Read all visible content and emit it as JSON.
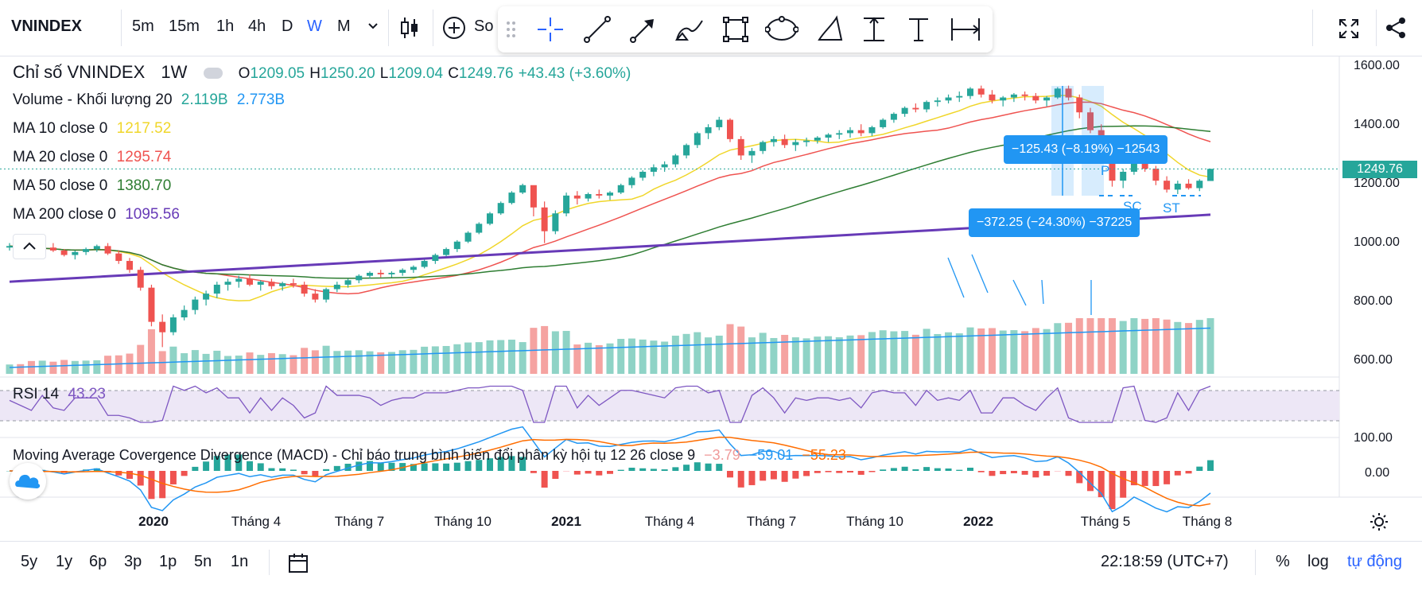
{
  "header": {
    "symbol": "VNINDEX",
    "timeframes": [
      "5m",
      "15m",
      "1h",
      "4h",
      "D",
      "W",
      "M"
    ],
    "active_timeframe": "W",
    "compare_label": "So"
  },
  "legend": {
    "title": "Chỉ số VNINDEX",
    "interval": "1W",
    "open_label": "O",
    "open": "1209.05",
    "high_label": "H",
    "high": "1250.20",
    "low_label": "L",
    "low": "1209.04",
    "close_label": "C",
    "close": "1249.76",
    "change": "+43.43 (+3.60%)",
    "volume_label": "Volume - Khối lượng 20",
    "volume_val1": "2.119B",
    "volume_val2": "2.773B",
    "ma10_label": "MA 10 close 0",
    "ma10_val": "1217.52",
    "ma20_label": "MA 20 close 0",
    "ma20_val": "1295.74",
    "ma50_label": "MA 50 close 0",
    "ma50_val": "1380.70",
    "ma200_label": "MA 200 close 0",
    "ma200_val": "1095.56",
    "rsi_label": "RSI 14",
    "rsi_val": "43.23",
    "macd_label": "Moving Average Covergence Divergence (MACD) - Chỉ báo trung bình biến đổi phân kỳ hội tụ 12 26 close 9",
    "macd_val1": "−3.79",
    "macd_val2": "−59.01",
    "macd_val3": "−55.23"
  },
  "colors": {
    "up": "#26a69a",
    "down": "#ef5350",
    "ma10": "#f0d62a",
    "ma20": "#ef5350",
    "ma50": "#2e7d32",
    "ma200": "#673ab7",
    "blue": "#2196f3",
    "rsi": "#7e57c2",
    "macd_orange": "#ff6d00"
  },
  "price_axis": {
    "ticks": [
      "1600.00",
      "1400.00",
      "1200.00",
      "1000.00",
      "800.00",
      "600.00"
    ],
    "current": "1249.76"
  },
  "rsi_axis": {
    "ticks": [
      "100.00"
    ]
  },
  "macd_axis": {
    "ticks": [
      "0.00"
    ]
  },
  "measurements": [
    {
      "text": "−125.43 (−8.19%) −12543"
    },
    {
      "text": "−372.25 (−24.30%) −37225"
    }
  ],
  "pattern_labels": [
    "P",
    "SC",
    "ST"
  ],
  "x_axis": [
    "2020",
    "Tháng 4",
    "Tháng 7",
    "Tháng 10",
    "2021",
    "Tháng 4",
    "Tháng 7",
    "Tháng 10",
    "2022",
    "Tháng 5",
    "Tháng 8"
  ],
  "bottom": {
    "ranges": [
      "5y",
      "1y",
      "6p",
      "3p",
      "1p",
      "5n",
      "1n"
    ],
    "time": "22:18:59 (UTC+7)",
    "percent": "%",
    "log": "log",
    "auto": "tự động"
  },
  "chart_data": {
    "type": "candlestick",
    "interval": "weekly",
    "y_range": [
      560,
      1620
    ],
    "weeks": [
      [
        985,
        1000,
        975,
        990
      ],
      [
        990,
        1005,
        980,
        985
      ],
      [
        985,
        995,
        960,
        970
      ],
      [
        970,
        990,
        960,
        985
      ],
      [
        985,
        1000,
        970,
        975
      ],
      [
        975,
        980,
        955,
        960
      ],
      [
        960,
        975,
        945,
        970
      ],
      [
        970,
        985,
        960,
        980
      ],
      [
        980,
        995,
        970,
        990
      ],
      [
        990,
        1000,
        960,
        965
      ],
      [
        965,
        975,
        930,
        940
      ],
      [
        940,
        950,
        900,
        910
      ],
      [
        910,
        920,
        840,
        850
      ],
      [
        850,
        860,
        720,
        735
      ],
      [
        735,
        760,
        650,
        700
      ],
      [
        700,
        760,
        690,
        750
      ],
      [
        750,
        790,
        740,
        775
      ],
      [
        775,
        820,
        760,
        810
      ],
      [
        810,
        840,
        790,
        830
      ],
      [
        830,
        870,
        815,
        860
      ],
      [
        860,
        880,
        840,
        870
      ],
      [
        870,
        890,
        850,
        880
      ],
      [
        880,
        895,
        855,
        860
      ],
      [
        860,
        875,
        840,
        870
      ],
      [
        870,
        880,
        845,
        855
      ],
      [
        855,
        870,
        840,
        865
      ],
      [
        865,
        880,
        850,
        860
      ],
      [
        860,
        870,
        820,
        830
      ],
      [
        830,
        845,
        800,
        810
      ],
      [
        810,
        850,
        800,
        845
      ],
      [
        845,
        870,
        835,
        860
      ],
      [
        860,
        880,
        850,
        875
      ],
      [
        875,
        895,
        865,
        890
      ],
      [
        890,
        905,
        880,
        900
      ],
      [
        900,
        910,
        885,
        895
      ],
      [
        895,
        905,
        885,
        900
      ],
      [
        900,
        915,
        890,
        910
      ],
      [
        910,
        925,
        900,
        920
      ],
      [
        920,
        945,
        915,
        940
      ],
      [
        940,
        965,
        930,
        960
      ],
      [
        960,
        985,
        955,
        980
      ],
      [
        980,
        1010,
        970,
        1005
      ],
      [
        1005,
        1040,
        1000,
        1035
      ],
      [
        1035,
        1070,
        1030,
        1065
      ],
      [
        1065,
        1105,
        1060,
        1100
      ],
      [
        1100,
        1140,
        1095,
        1135
      ],
      [
        1135,
        1175,
        1130,
        1170
      ],
      [
        1170,
        1200,
        1165,
        1195
      ],
      [
        1195,
        1190,
        1090,
        1120
      ],
      [
        1120,
        1140,
        1000,
        1040
      ],
      [
        1040,
        1110,
        1030,
        1100
      ],
      [
        1100,
        1170,
        1090,
        1160
      ],
      [
        1160,
        1175,
        1130,
        1150
      ],
      [
        1150,
        1170,
        1140,
        1165
      ],
      [
        1165,
        1180,
        1150,
        1160
      ],
      [
        1160,
        1175,
        1145,
        1170
      ],
      [
        1170,
        1200,
        1165,
        1195
      ],
      [
        1195,
        1225,
        1185,
        1220
      ],
      [
        1220,
        1245,
        1210,
        1240
      ],
      [
        1240,
        1265,
        1225,
        1255
      ],
      [
        1255,
        1275,
        1240,
        1265
      ],
      [
        1265,
        1300,
        1255,
        1295
      ],
      [
        1295,
        1335,
        1285,
        1330
      ],
      [
        1330,
        1375,
        1320,
        1370
      ],
      [
        1370,
        1400,
        1350,
        1390
      ],
      [
        1390,
        1425,
        1380,
        1415
      ],
      [
        1415,
        1420,
        1340,
        1350
      ],
      [
        1350,
        1360,
        1280,
        1295
      ],
      [
        1295,
        1320,
        1270,
        1310
      ],
      [
        1310,
        1345,
        1300,
        1340
      ],
      [
        1340,
        1360,
        1325,
        1350
      ],
      [
        1350,
        1365,
        1320,
        1330
      ],
      [
        1330,
        1350,
        1310,
        1340
      ],
      [
        1340,
        1355,
        1325,
        1345
      ],
      [
        1345,
        1360,
        1335,
        1355
      ],
      [
        1355,
        1370,
        1340,
        1365
      ],
      [
        1365,
        1380,
        1350,
        1370
      ],
      [
        1370,
        1390,
        1355,
        1380
      ],
      [
        1380,
        1400,
        1360,
        1370
      ],
      [
        1370,
        1395,
        1360,
        1390
      ],
      [
        1390,
        1420,
        1385,
        1415
      ],
      [
        1415,
        1440,
        1405,
        1435
      ],
      [
        1435,
        1460,
        1425,
        1455
      ],
      [
        1455,
        1470,
        1440,
        1450
      ],
      [
        1450,
        1480,
        1440,
        1475
      ],
      [
        1475,
        1490,
        1460,
        1480
      ],
      [
        1480,
        1500,
        1470,
        1490
      ],
      [
        1490,
        1510,
        1475,
        1495
      ],
      [
        1495,
        1525,
        1485,
        1520
      ],
      [
        1520,
        1530,
        1490,
        1500
      ],
      [
        1500,
        1515,
        1470,
        1480
      ],
      [
        1480,
        1495,
        1460,
        1490
      ],
      [
        1490,
        1505,
        1475,
        1500
      ],
      [
        1500,
        1510,
        1480,
        1495
      ],
      [
        1495,
        1505,
        1470,
        1480
      ],
      [
        1480,
        1495,
        1460,
        1490
      ],
      [
        1490,
        1525,
        1485,
        1520
      ],
      [
        1520,
        1530,
        1480,
        1490
      ],
      [
        1490,
        1500,
        1420,
        1440
      ],
      [
        1440,
        1455,
        1370,
        1380
      ],
      [
        1380,
        1400,
        1300,
        1320
      ],
      [
        1320,
        1330,
        1190,
        1210
      ],
      [
        1210,
        1250,
        1185,
        1240
      ],
      [
        1240,
        1290,
        1230,
        1285
      ],
      [
        1285,
        1300,
        1240,
        1250
      ],
      [
        1250,
        1260,
        1195,
        1210
      ],
      [
        1210,
        1225,
        1170,
        1180
      ],
      [
        1180,
        1210,
        1165,
        1200
      ],
      [
        1200,
        1215,
        1180,
        1185
      ],
      [
        1185,
        1215,
        1175,
        1210
      ],
      [
        1209.05,
        1250.2,
        1209.04,
        1249.76
      ]
    ],
    "ma10_last": 1217.52,
    "ma20_last": 1295.74,
    "ma50_last": 1380.7,
    "ma200_last": 1095.56,
    "rsi_last": 43.23,
    "macd_last": [
      -3.79,
      -59.01,
      -55.23
    ]
  }
}
